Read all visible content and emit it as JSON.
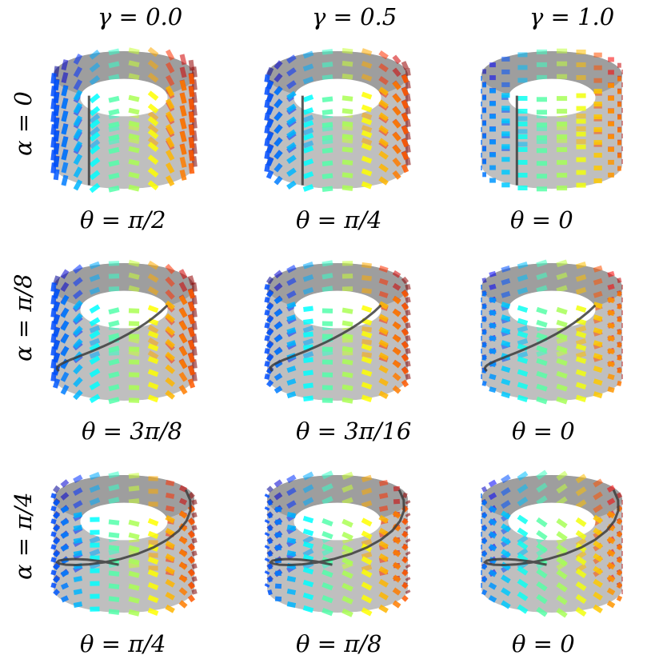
{
  "columns": [
    {
      "gamma_label": "γ = 0.0"
    },
    {
      "gamma_label": "γ = 0.5"
    },
    {
      "gamma_label": "γ = 1.0"
    }
  ],
  "rows": [
    {
      "alpha_label": "α = 0"
    },
    {
      "alpha_label": "α = π/8"
    },
    {
      "alpha_label": "α = π/4"
    }
  ],
  "panels": [
    {
      "theta_label": "θ = π/2",
      "alpha_deg": 0,
      "gamma": 0.0
    },
    {
      "theta_label": "θ = π/4",
      "alpha_deg": 0,
      "gamma": 0.5
    },
    {
      "theta_label": "θ = 0",
      "alpha_deg": 0,
      "gamma": 1.0
    },
    {
      "theta_label": "θ = 3π/8",
      "alpha_deg": 22.5,
      "gamma": 0.0
    },
    {
      "theta_label": "θ = 3π/16",
      "alpha_deg": 22.5,
      "gamma": 0.5
    },
    {
      "theta_label": "θ = 0",
      "alpha_deg": 22.5,
      "gamma": 1.0
    },
    {
      "theta_label": "θ = π/4",
      "alpha_deg": 45,
      "gamma": 0.0
    },
    {
      "theta_label": "θ = π/8",
      "alpha_deg": 45,
      "gamma": 0.5
    },
    {
      "theta_label": "θ = 0",
      "alpha_deg": 45,
      "gamma": 1.0
    }
  ],
  "colors": {
    "cylinder_fill": "#b4b4b4",
    "cylinder_shade": "#9a9a9a",
    "helix_line": "#3c3c3c",
    "background": "#ffffff"
  }
}
